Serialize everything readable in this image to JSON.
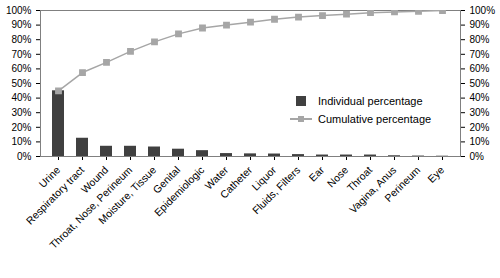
{
  "chart_data": {
    "type": "bar",
    "categories": [
      "Urine",
      "Respiratory tract",
      "Wound",
      "Throat, Nose, Perineum",
      "Moisture, Tissue",
      "Genital",
      "Epidemiologic",
      "Water",
      "Catheter",
      "Liquor",
      "Fluids, Filters",
      "Ear",
      "Nose",
      "Throat",
      "Vagina, Anus",
      "Perineum",
      "Eye"
    ],
    "series": [
      {
        "name": "Individual percentage",
        "type": "bar",
        "color": "#404040",
        "values": [
          45,
          12.5,
          7,
          7,
          6.5,
          5,
          4,
          2,
          1.8,
          1.7,
          1.3,
          1,
          1,
          1,
          0.5,
          0.3,
          0.2
        ]
      },
      {
        "name": "Cumulative percentage",
        "type": "line",
        "color": "#a6a6a6",
        "marker": "square",
        "axis": "y2",
        "values": [
          45,
          57.5,
          64.5,
          72,
          78.5,
          84,
          88,
          90,
          92,
          94,
          95.5,
          96.5,
          97.5,
          98.5,
          99,
          99.5,
          100
        ]
      }
    ],
    "ylim": [
      0,
      100
    ],
    "yticks": [
      {
        "value": 0,
        "label": "0%"
      },
      {
        "value": 10,
        "label": "10%"
      },
      {
        "value": 20,
        "label": "20%"
      },
      {
        "value": 30,
        "label": "30%"
      },
      {
        "value": 40,
        "label": "40%"
      },
      {
        "value": 50,
        "label": "50%"
      },
      {
        "value": 60,
        "label": "60%"
      },
      {
        "value": 70,
        "label": "70%"
      },
      {
        "value": 80,
        "label": "80%"
      },
      {
        "value": 90,
        "label": "90%"
      },
      {
        "value": 100,
        "label": "100%"
      }
    ],
    "y2lim": [
      0,
      100
    ],
    "y2ticks": [
      {
        "value": 0,
        "label": "0%"
      },
      {
        "value": 10,
        "label": "10%"
      },
      {
        "value": 20,
        "label": "20%"
      },
      {
        "value": 30,
        "label": "30%"
      },
      {
        "value": 40,
        "label": "40%"
      },
      {
        "value": 50,
        "label": "50%"
      },
      {
        "value": 60,
        "label": "60%"
      },
      {
        "value": 70,
        "label": "70%"
      },
      {
        "value": 80,
        "label": "80%"
      },
      {
        "value": 90,
        "label": "90%"
      },
      {
        "value": 100,
        "label": "100%"
      }
    ],
    "legend": "right"
  }
}
